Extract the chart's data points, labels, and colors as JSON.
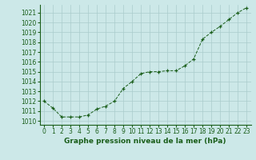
{
  "x": [
    0,
    1,
    2,
    3,
    4,
    5,
    6,
    7,
    8,
    9,
    10,
    11,
    12,
    13,
    14,
    15,
    16,
    17,
    18,
    19,
    20,
    21,
    22,
    23
  ],
  "y": [
    1012.0,
    1011.3,
    1010.4,
    1010.4,
    1010.4,
    1010.6,
    1011.2,
    1011.5,
    1012.0,
    1013.3,
    1014.0,
    1014.8,
    1015.0,
    1015.0,
    1015.1,
    1015.1,
    1015.6,
    1016.3,
    1018.3,
    1019.0,
    1019.6,
    1020.3,
    1021.0,
    1021.5
  ],
  "line_color": "#1a5e1a",
  "marker": "+",
  "bg_color": "#cce8e8",
  "grid_color": "#aacccc",
  "xlabel": "Graphe pression niveau de la mer (hPa)",
  "ylim_min": 1009.6,
  "ylim_max": 1021.8,
  "xlim_min": -0.5,
  "xlim_max": 23.5,
  "yticks": [
    1010,
    1011,
    1012,
    1013,
    1014,
    1015,
    1016,
    1017,
    1018,
    1019,
    1020,
    1021
  ],
  "xticks": [
    0,
    1,
    2,
    3,
    4,
    5,
    6,
    7,
    8,
    9,
    10,
    11,
    12,
    13,
    14,
    15,
    16,
    17,
    18,
    19,
    20,
    21,
    22,
    23
  ],
  "tick_color": "#1a5e1a",
  "label_color": "#1a5e1a",
  "label_fontsize": 6.5,
  "tick_fontsize": 5.5,
  "markersize": 3.5,
  "linewidth": 0.7,
  "markeredgewidth": 0.9
}
